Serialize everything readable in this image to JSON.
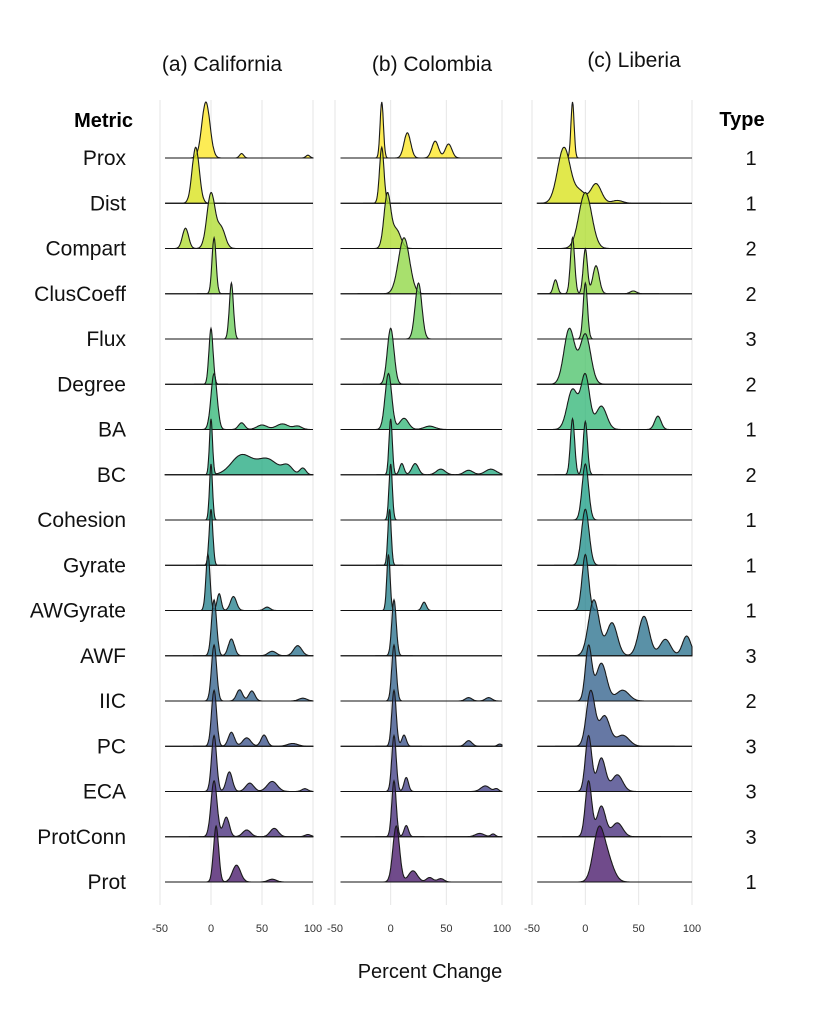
{
  "chart_data": {
    "type": "ridgeline",
    "xlabel": "Percent Change",
    "xlim": [
      -50,
      100
    ],
    "xticks": [
      "-50",
      "0",
      "50",
      "100"
    ],
    "metric_header": "Metric",
    "type_header": "Type",
    "metrics": [
      {
        "name": "Prox",
        "type": "1",
        "color": "#fde725"
      },
      {
        "name": "Dist",
        "type": "1",
        "color": "#d8e219"
      },
      {
        "name": "Compart",
        "type": "2",
        "color": "#b0dd2f"
      },
      {
        "name": "ClusCoeff",
        "type": "2",
        "color": "#8fd744"
      },
      {
        "name": "Flux",
        "type": "3",
        "color": "#6ccd5a"
      },
      {
        "name": "Degree",
        "type": "2",
        "color": "#4ec36b"
      },
      {
        "name": "BA",
        "type": "1",
        "color": "#35b779"
      },
      {
        "name": "BC",
        "type": "2",
        "color": "#25ab82"
      },
      {
        "name": "Cohesion",
        "type": "1",
        "color": "#1fa088"
      },
      {
        "name": "Gyrate",
        "type": "1",
        "color": "#21918c"
      },
      {
        "name": "AWGyrate",
        "type": "1",
        "color": "#26828e"
      },
      {
        "name": "AWF",
        "type": "3",
        "color": "#2c728e"
      },
      {
        "name": "IIC",
        "type": "2",
        "color": "#33638d"
      },
      {
        "name": "PC",
        "type": "3",
        "color": "#3b528b"
      },
      {
        "name": "ECA",
        "type": "3",
        "color": "#424086"
      },
      {
        "name": "ProtConn",
        "type": "3",
        "color": "#472d7b"
      },
      {
        "name": "Prot",
        "type": "1",
        "color": "#48186a"
      }
    ],
    "panels": [
      {
        "title": "(a) California",
        "series": [
          {
            "metric": "Prox",
            "peaks": [
              [
                -5,
                4,
                1
              ],
              [
                30,
                2,
                0.08
              ],
              [
                95,
                2,
                0.05
              ]
            ]
          },
          {
            "metric": "Dist",
            "peaks": [
              [
                -15,
                3.5,
                1
              ]
            ]
          },
          {
            "metric": "Compart",
            "peaks": [
              [
                0,
                4,
                0.95
              ],
              [
                -25,
                3,
                0.35
              ],
              [
                10,
                4,
                0.35
              ]
            ]
          },
          {
            "metric": "ClusCoeff",
            "peaks": [
              [
                3,
                2,
                1
              ]
            ]
          },
          {
            "metric": "Flux",
            "peaks": [
              [
                20,
                2,
                1
              ]
            ]
          },
          {
            "metric": "Degree",
            "peaks": [
              [
                0,
                2,
                1
              ]
            ]
          },
          {
            "metric": "BA",
            "peaks": [
              [
                3,
                3,
                1
              ],
              [
                30,
                3,
                0.12
              ],
              [
                50,
                5,
                0.08
              ],
              [
                70,
                6,
                0.1
              ],
              [
                85,
                4,
                0.06
              ]
            ]
          },
          {
            "metric": "BC",
            "peaks": [
              [
                0,
                1.5,
                1
              ],
              [
                30,
                10,
                0.35
              ],
              [
                55,
                10,
                0.28
              ],
              [
                75,
                5,
                0.15
              ],
              [
                90,
                3,
                0.12
              ]
            ]
          },
          {
            "metric": "Cohesion",
            "peaks": [
              [
                0,
                1.5,
                1
              ]
            ]
          },
          {
            "metric": "Gyrate",
            "peaks": [
              [
                0,
                1.8,
                1
              ]
            ]
          },
          {
            "metric": "AWGyrate",
            "peaks": [
              [
                -3,
                2,
                1
              ],
              [
                8,
                2,
                0.3
              ],
              [
                22,
                3,
                0.25
              ],
              [
                55,
                3,
                0.06
              ]
            ]
          },
          {
            "metric": "AWF",
            "peaks": [
              [
                3,
                2.5,
                1
              ],
              [
                20,
                3,
                0.3
              ],
              [
                60,
                4,
                0.08
              ],
              [
                85,
                4,
                0.18
              ]
            ]
          },
          {
            "metric": "IIC",
            "peaks": [
              [
                3,
                2.5,
                1
              ],
              [
                28,
                3,
                0.2
              ],
              [
                40,
                3,
                0.18
              ],
              [
                90,
                4,
                0.05
              ]
            ]
          },
          {
            "metric": "PC",
            "peaks": [
              [
                3,
                2.5,
                1
              ],
              [
                20,
                3,
                0.25
              ],
              [
                35,
                4,
                0.15
              ],
              [
                52,
                3,
                0.2
              ],
              [
                80,
                5,
                0.05
              ]
            ]
          },
          {
            "metric": "ECA",
            "peaks": [
              [
                3,
                2.5,
                1
              ],
              [
                18,
                3,
                0.35
              ],
              [
                38,
                4,
                0.15
              ],
              [
                60,
                5,
                0.18
              ],
              [
                92,
                3,
                0.05
              ]
            ]
          },
          {
            "metric": "ProtConn",
            "peaks": [
              [
                3,
                3,
                1
              ],
              [
                15,
                3,
                0.35
              ],
              [
                35,
                4,
                0.12
              ],
              [
                62,
                4,
                0.15
              ],
              [
                95,
                3,
                0.04
              ]
            ]
          },
          {
            "metric": "Prot",
            "peaks": [
              [
                5,
                2.5,
                1
              ],
              [
                25,
                4,
                0.3
              ],
              [
                60,
                4,
                0.05
              ]
            ]
          }
        ]
      },
      {
        "title": "(b) Colombia",
        "series": [
          {
            "metric": "Prox",
            "peaks": [
              [
                -8,
                1.5,
                1
              ],
              [
                15,
                3,
                0.45
              ],
              [
                40,
                3,
                0.3
              ],
              [
                52,
                3,
                0.25
              ]
            ]
          },
          {
            "metric": "Dist",
            "peaks": [
              [
                -8,
                2,
                1
              ]
            ]
          },
          {
            "metric": "Compart",
            "peaks": [
              [
                -3,
                3,
                1
              ],
              [
                5,
                4,
                0.35
              ]
            ]
          },
          {
            "metric": "ClusCoeff",
            "peaks": [
              [
                12,
                5,
                1
              ]
            ]
          },
          {
            "metric": "Flux",
            "peaks": [
              [
                25,
                3,
                1
              ]
            ]
          },
          {
            "metric": "Degree",
            "peaks": [
              [
                0,
                3,
                1
              ]
            ]
          },
          {
            "metric": "BA",
            "peaks": [
              [
                -2,
                3,
                1
              ],
              [
                12,
                4,
                0.2
              ],
              [
                35,
                5,
                0.06
              ]
            ]
          },
          {
            "metric": "BC",
            "peaks": [
              [
                0,
                1.5,
                1
              ],
              [
                10,
                2,
                0.2
              ],
              [
                22,
                3,
                0.2
              ],
              [
                45,
                4,
                0.1
              ],
              [
                70,
                4,
                0.08
              ],
              [
                90,
                5,
                0.1
              ]
            ]
          },
          {
            "metric": "Cohesion",
            "peaks": [
              [
                0,
                1.5,
                1
              ]
            ]
          },
          {
            "metric": "Gyrate",
            "peaks": [
              [
                -1,
                1.5,
                1
              ]
            ]
          },
          {
            "metric": "AWGyrate",
            "peaks": [
              [
                -2,
                1.5,
                1
              ],
              [
                30,
                2,
                0.15
              ]
            ]
          },
          {
            "metric": "AWF",
            "peaks": [
              [
                3,
                2,
                1
              ]
            ]
          },
          {
            "metric": "IIC",
            "peaks": [
              [
                3,
                2,
                1
              ],
              [
                70,
                3,
                0.06
              ],
              [
                88,
                3,
                0.06
              ]
            ]
          },
          {
            "metric": "PC",
            "peaks": [
              [
                3,
                2,
                1
              ],
              [
                12,
                2,
                0.2
              ],
              [
                70,
                3,
                0.1
              ],
              [
                98,
                2,
                0.04
              ]
            ]
          },
          {
            "metric": "ECA",
            "peaks": [
              [
                3,
                2,
                1
              ],
              [
                14,
                2,
                0.25
              ],
              [
                85,
                4,
                0.1
              ],
              [
                95,
                2,
                0.05
              ]
            ]
          },
          {
            "metric": "ProtConn",
            "peaks": [
              [
                3,
                2,
                1
              ],
              [
                14,
                2,
                0.2
              ],
              [
                80,
                4,
                0.06
              ],
              [
                92,
                2,
                0.05
              ]
            ]
          },
          {
            "metric": "Prot",
            "peaks": [
              [
                5,
                3,
                1
              ],
              [
                20,
                4,
                0.2
              ],
              [
                35,
                3,
                0.08
              ],
              [
                45,
                3,
                0.06
              ]
            ]
          }
        ]
      },
      {
        "title": "(c) Liberia",
        "series": [
          {
            "metric": "Prox",
            "peaks": [
              [
                -12,
                1.5,
                1
              ]
            ]
          },
          {
            "metric": "Dist",
            "peaks": [
              [
                -20,
                6,
                1
              ],
              [
                -5,
                5,
                0.2
              ],
              [
                10,
                5,
                0.35
              ],
              [
                30,
                5,
                0.05
              ]
            ]
          },
          {
            "metric": "Compart",
            "peaks": [
              [
                0,
                6,
                1
              ]
            ]
          },
          {
            "metric": "ClusCoeff",
            "peaks": [
              [
                -12,
                2,
                1
              ],
              [
                0,
                2,
                0.8
              ],
              [
                10,
                3,
                0.5
              ],
              [
                -28,
                2,
                0.25
              ],
              [
                45,
                3,
                0.05
              ]
            ]
          },
          {
            "metric": "Flux",
            "peaks": [
              [
                0,
                2,
                1
              ]
            ]
          },
          {
            "metric": "Degree",
            "peaks": [
              [
                -15,
                5,
                1
              ],
              [
                0,
                5,
                0.9
              ]
            ]
          },
          {
            "metric": "BA",
            "peaks": [
              [
                -12,
                5,
                0.6
              ],
              [
                0,
                4,
                0.8
              ],
              [
                15,
                5,
                0.35
              ],
              [
                68,
                3,
                0.2
              ]
            ]
          },
          {
            "metric": "BC",
            "peaks": [
              [
                -12,
                2,
                1
              ],
              [
                0,
                2,
                0.95
              ]
            ]
          },
          {
            "metric": "Cohesion",
            "peaks": [
              [
                0,
                3,
                1
              ]
            ]
          },
          {
            "metric": "Gyrate",
            "peaks": [
              [
                0,
                3.5,
                1
              ]
            ]
          },
          {
            "metric": "AWGyrate",
            "peaks": [
              [
                0,
                3,
                1
              ]
            ]
          },
          {
            "metric": "AWF",
            "peaks": [
              [
                8,
                5,
                0.85
              ],
              [
                25,
                5,
                0.5
              ],
              [
                55,
                5,
                0.6
              ],
              [
                75,
                5,
                0.25
              ],
              [
                95,
                4,
                0.3
              ]
            ]
          },
          {
            "metric": "IIC",
            "peaks": [
              [
                3,
                3,
                1
              ],
              [
                15,
                5,
                0.7
              ],
              [
                35,
                6,
                0.2
              ]
            ]
          },
          {
            "metric": "PC",
            "peaks": [
              [
                5,
                4,
                1
              ],
              [
                18,
                5,
                0.55
              ],
              [
                35,
                6,
                0.2
              ]
            ]
          },
          {
            "metric": "ECA",
            "peaks": [
              [
                3,
                3,
                1
              ],
              [
                15,
                4,
                0.6
              ],
              [
                30,
                5,
                0.3
              ]
            ]
          },
          {
            "metric": "ProtConn",
            "peaks": [
              [
                3,
                3,
                1
              ],
              [
                15,
                4,
                0.55
              ],
              [
                30,
                5,
                0.25
              ]
            ]
          },
          {
            "metric": "Prot",
            "peaks": [
              [
                12,
                5,
                1
              ],
              [
                20,
                6,
                0.55
              ]
            ]
          }
        ]
      }
    ]
  }
}
